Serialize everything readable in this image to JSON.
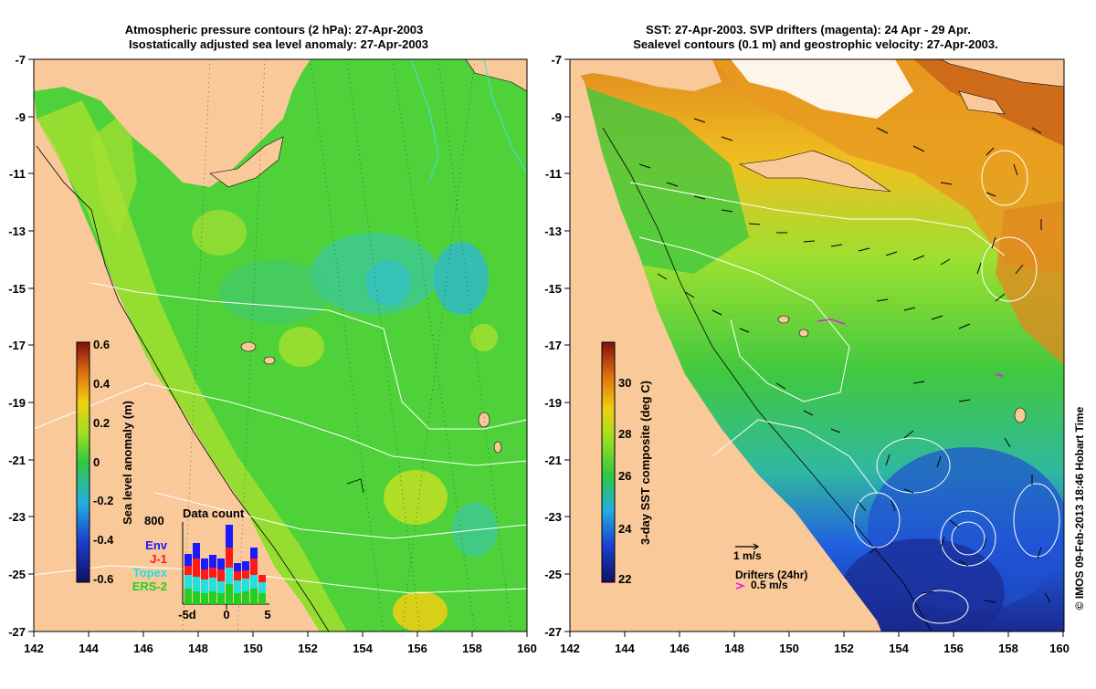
{
  "left_panel": {
    "title_line1": "Atmospheric pressure contours (2 hPa): 27-Apr-2003",
    "title_line2": "Isostatically adjusted sea level anomaly: 27-Apr-2003",
    "x_ticks": [
      "142",
      "144",
      "146",
      "148",
      "150",
      "152",
      "154",
      "156",
      "158",
      "160"
    ],
    "y_ticks": [
      "-7",
      "-9",
      "-11",
      "-13",
      "-15",
      "-17",
      "-19",
      "-21",
      "-23",
      "-25",
      "-27"
    ],
    "colorbar": {
      "label": "Sea level anomaly (m)",
      "ticks": [
        "0.6",
        "0.4",
        "0.2",
        "0",
        "-0.2",
        "-0.4",
        "-0.6"
      ],
      "range": [
        -0.6,
        0.6
      ]
    },
    "data_count": {
      "title": "Data count",
      "y_max_label": "800",
      "x_ticks": [
        "-5d",
        "0",
        "5"
      ],
      "legend": [
        {
          "label": "Env",
          "color": "#1a1aff"
        },
        {
          "label": "J-1",
          "color": "#ff1a1a"
        },
        {
          "label": "Topex",
          "color": "#22e0e0"
        },
        {
          "label": "ERS-2",
          "color": "#22d022"
        }
      ]
    }
  },
  "right_panel": {
    "title_line1": "SST: 27-Apr-2003. SVP drifters (magenta): 24 Apr - 29 Apr.",
    "title_line2": "Sealevel contours (0.1 m) and geostrophic velocity: 27-Apr-2003.",
    "x_ticks": [
      "142",
      "144",
      "146",
      "148",
      "150",
      "152",
      "154",
      "156",
      "158",
      "160"
    ],
    "y_ticks": [
      "-7",
      "-9",
      "-11",
      "-13",
      "-15",
      "-17",
      "-19",
      "-21",
      "-23",
      "-25",
      "-27"
    ],
    "colorbar": {
      "label": "3-day SST composite (deg C)",
      "ticks": [
        "30",
        "28",
        "26",
        "24",
        "22"
      ],
      "range": [
        21.8,
        31.2
      ]
    },
    "scale_label": "1 m/s",
    "drifter_label": "Drifters (24hr)",
    "drifter_speed": "0.5 m/s"
  },
  "credit": "© IMOS 09-Feb-2013 18:46 Hobart Time",
  "colors": {
    "land": "#f9c99a",
    "ocean_green": "#4fd13a",
    "magenta": "#e020e0"
  }
}
